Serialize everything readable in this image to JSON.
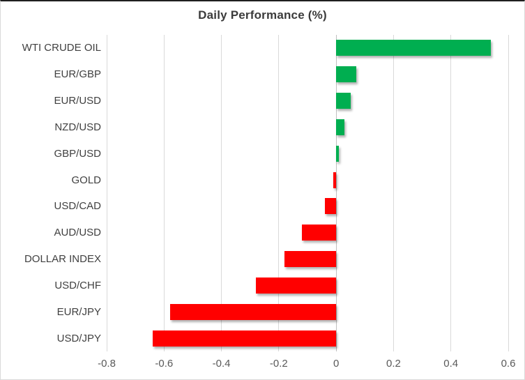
{
  "chart_data": {
    "type": "bar",
    "orientation": "horizontal",
    "title": "Daily Performance (%)",
    "categories": [
      "WTI CRUDE OIL",
      "EUR/GBP",
      "EUR/USD",
      "NZD/USD",
      "GBP/USD",
      "GOLD",
      "USD/CAD",
      "AUD/USD",
      "DOLLAR INDEX",
      "USD/CHF",
      "EUR/JPY",
      "USD/JPY"
    ],
    "values": [
      0.54,
      0.07,
      0.05,
      0.03,
      0.01,
      -0.01,
      -0.04,
      -0.12,
      -0.18,
      -0.28,
      -0.58,
      -0.64
    ],
    "xlim": [
      -0.8,
      0.6
    ],
    "xticks": [
      "-0.8",
      "-0.6",
      "-0.4",
      "-0.2",
      "0",
      "0.2",
      "0.4",
      "0.6"
    ],
    "grid": true,
    "legend": false,
    "colors": {
      "positive": "#00AE50",
      "negative": "#FF0000",
      "gridline": "#d9d9d9",
      "zero_axis": "#c0c0c0",
      "title_text": "#3b3b3b",
      "category_text": "#404040",
      "tick_text": "#595959"
    }
  }
}
